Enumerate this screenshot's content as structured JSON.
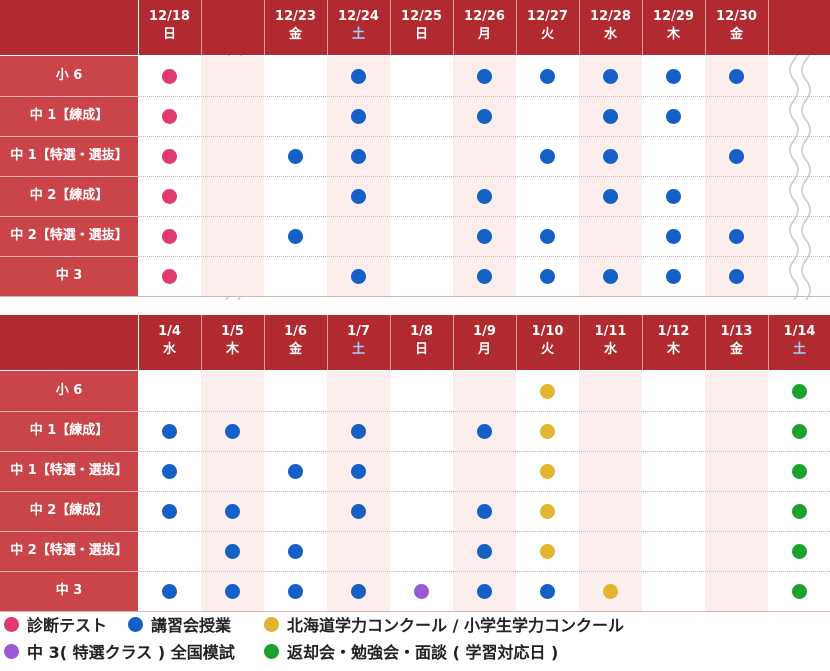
{
  "colors": {
    "header_bg": "#b02a30",
    "label_bg": "#c9454a",
    "shade": "#fdeeee",
    "pink": "#e03a6e",
    "blue": "#1560c6",
    "yellow": "#e2b530",
    "purple": "#9a5ad6",
    "green": "#19a32c",
    "sat": "#9fd0ff"
  },
  "row_labels": [
    "小 6",
    "中 1【練成】",
    "中 1【特選・選抜】",
    "中 2【練成】",
    "中 2【特選・選抜】",
    "中 3"
  ],
  "tables": [
    {
      "columns": [
        {
          "date": "12/18",
          "day": "日",
          "shaded": false,
          "dots": [
            "pink",
            "pink",
            "pink",
            "pink",
            "pink",
            "pink"
          ]
        },
        {
          "date": "",
          "day": "",
          "shaded": true,
          "gap": true,
          "dots": [
            null,
            null,
            null,
            null,
            null,
            null
          ]
        },
        {
          "date": "12/23",
          "day": "金",
          "shaded": false,
          "dots": [
            null,
            null,
            "blue",
            null,
            "blue",
            null
          ]
        },
        {
          "date": "12/24",
          "day": "土",
          "shaded": true,
          "sat": true,
          "dots": [
            "blue",
            "blue",
            "blue",
            "blue",
            null,
            "blue"
          ]
        },
        {
          "date": "12/25",
          "day": "日",
          "shaded": false,
          "dots": [
            null,
            null,
            null,
            null,
            null,
            null
          ]
        },
        {
          "date": "12/26",
          "day": "月",
          "shaded": true,
          "dots": [
            "blue",
            "blue",
            null,
            "blue",
            "blue",
            "blue"
          ]
        },
        {
          "date": "12/27",
          "day": "火",
          "shaded": false,
          "dots": [
            "blue",
            null,
            "blue",
            null,
            "blue",
            "blue"
          ]
        },
        {
          "date": "12/28",
          "day": "水",
          "shaded": true,
          "dots": [
            "blue",
            "blue",
            "blue",
            "blue",
            null,
            "blue"
          ]
        },
        {
          "date": "12/29",
          "day": "木",
          "shaded": false,
          "dots": [
            "blue",
            "blue",
            null,
            "blue",
            "blue",
            "blue"
          ]
        },
        {
          "date": "12/30",
          "day": "金",
          "shaded": true,
          "dots": [
            "blue",
            null,
            "blue",
            null,
            "blue",
            "blue"
          ]
        },
        {
          "date": "",
          "day": "",
          "shaded": false,
          "gap": true,
          "dots": [
            null,
            null,
            null,
            null,
            null,
            null
          ]
        }
      ]
    },
    {
      "columns": [
        {
          "date": "1/4",
          "day": "水",
          "shaded": false,
          "dots": [
            null,
            "blue",
            "blue",
            "blue",
            null,
            "blue"
          ]
        },
        {
          "date": "1/5",
          "day": "木",
          "shaded": true,
          "dots": [
            null,
            "blue",
            null,
            "blue",
            "blue",
            "blue"
          ]
        },
        {
          "date": "1/6",
          "day": "金",
          "shaded": false,
          "dots": [
            null,
            null,
            "blue",
            null,
            "blue",
            "blue"
          ]
        },
        {
          "date": "1/7",
          "day": "土",
          "shaded": true,
          "sat": true,
          "dots": [
            null,
            "blue",
            "blue",
            "blue",
            null,
            "blue"
          ]
        },
        {
          "date": "1/8",
          "day": "日",
          "shaded": false,
          "dots": [
            null,
            null,
            null,
            null,
            null,
            "purple"
          ]
        },
        {
          "date": "1/9",
          "day": "月",
          "shaded": true,
          "dots": [
            null,
            "blue",
            null,
            "blue",
            "blue",
            "blue"
          ]
        },
        {
          "date": "1/10",
          "day": "火",
          "shaded": false,
          "dots": [
            "yellow",
            "yellow",
            "yellow",
            "yellow",
            "yellow",
            "blue"
          ]
        },
        {
          "date": "1/11",
          "day": "水",
          "shaded": true,
          "dots": [
            null,
            null,
            null,
            null,
            null,
            "yellow"
          ]
        },
        {
          "date": "1/12",
          "day": "木",
          "shaded": false,
          "dots": [
            null,
            null,
            null,
            null,
            null,
            null
          ]
        },
        {
          "date": "1/13",
          "day": "金",
          "shaded": true,
          "dots": [
            null,
            null,
            null,
            null,
            null,
            null
          ]
        },
        {
          "date": "1/14",
          "day": "土",
          "shaded": false,
          "sat": true,
          "dots": [
            "green",
            "green",
            "green",
            "green",
            "green",
            "green"
          ]
        }
      ]
    }
  ],
  "legend": [
    {
      "color": "pink",
      "label": "診断テスト"
    },
    {
      "color": "blue",
      "label": "講習会授業"
    },
    {
      "color": "yellow",
      "label": "北海道学力コンクール / 小学生学力コンクール"
    },
    {
      "color": "purple",
      "label": "中 3( 特選クラス ) 全国模試"
    },
    {
      "color": "green",
      "label": "返却会・勉強会・面談 ( 学習対応日 )"
    }
  ]
}
